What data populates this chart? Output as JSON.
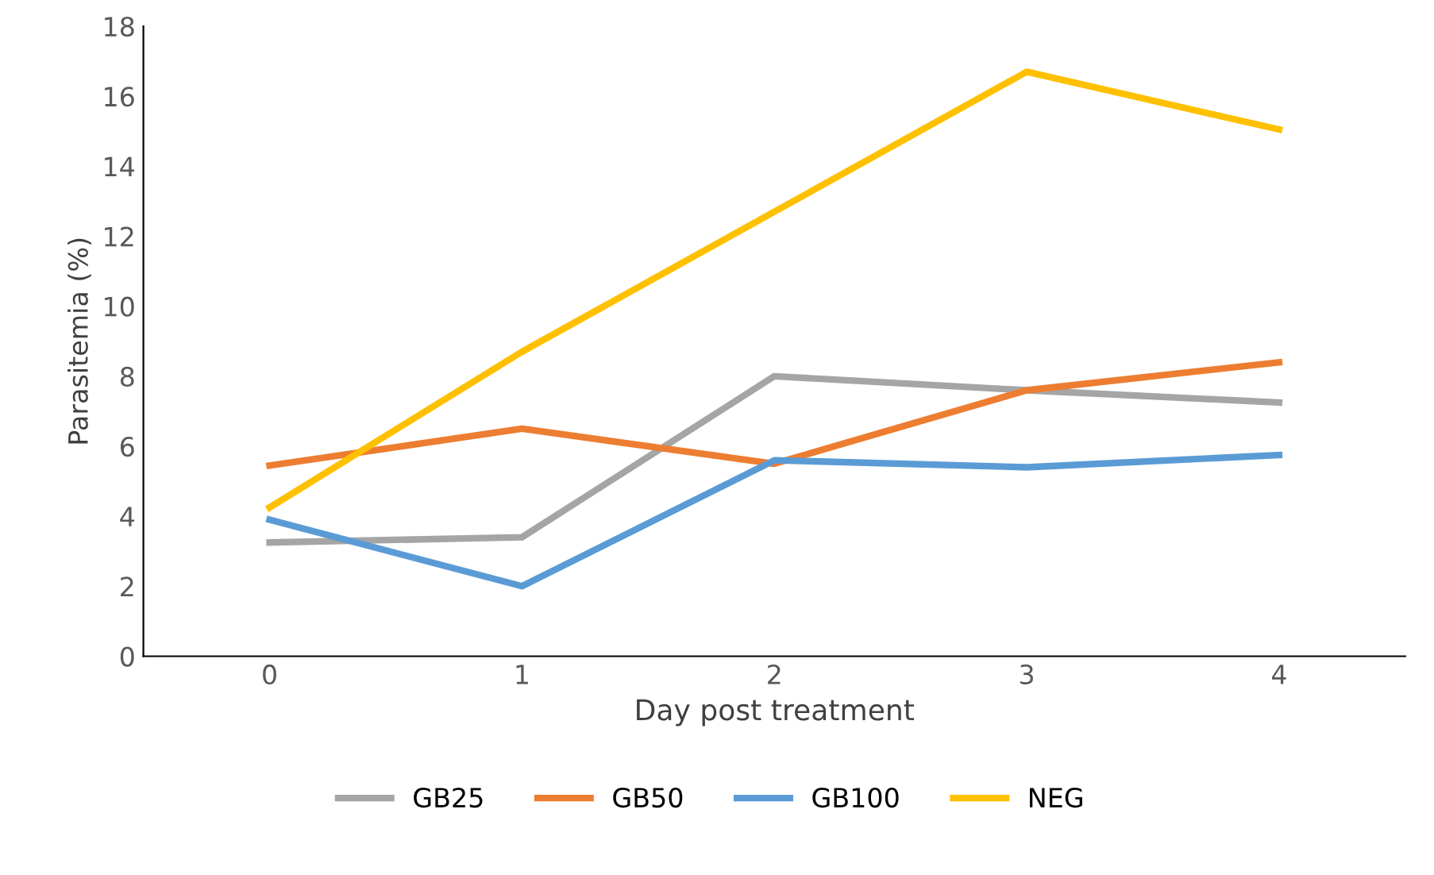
{
  "chart_data": {
    "type": "line",
    "xlabel": "Day post treatment",
    "ylabel": "Parasitemia (%)",
    "categories": [
      "0",
      "1",
      "2",
      "3",
      "4"
    ],
    "series": [
      {
        "name": "GB25",
        "color": "#a5a5a5",
        "values": [
          3.25,
          3.4,
          8.0,
          7.6,
          7.25
        ]
      },
      {
        "name": "GB50",
        "color": "#ed7d31",
        "values": [
          5.45,
          6.5,
          5.5,
          7.6,
          8.4
        ]
      },
      {
        "name": "GB100",
        "color": "#5b9bd5",
        "values": [
          3.9,
          2.0,
          5.6,
          5.4,
          5.75
        ]
      },
      {
        "name": "NEG",
        "color": "#ffc000",
        "values": [
          4.25,
          8.7,
          12.7,
          16.7,
          15.05
        ]
      }
    ],
    "ylim": [
      0,
      18
    ],
    "yticks": [
      0,
      2,
      4,
      6,
      8,
      10,
      12,
      14,
      16,
      18
    ],
    "grid": false,
    "legend": "bottom",
    "marker": "none",
    "line_style": "solid"
  }
}
